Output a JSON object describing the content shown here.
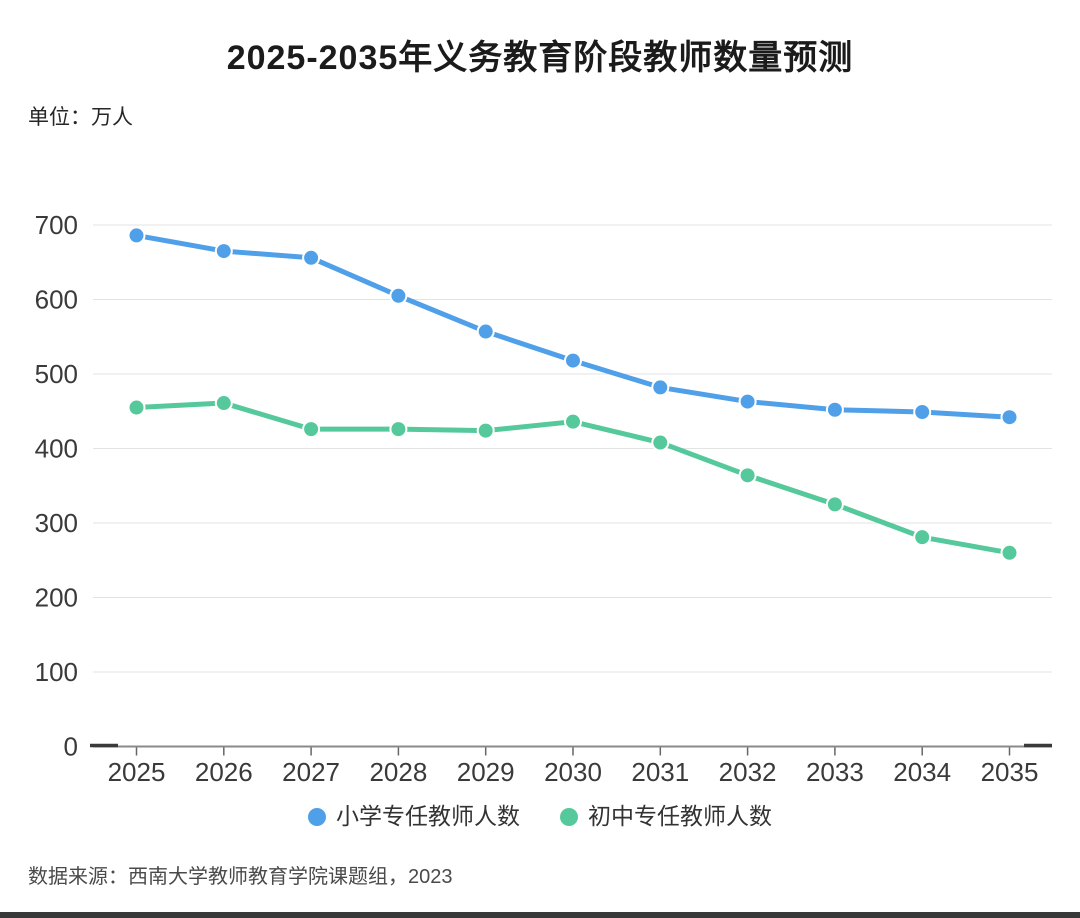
{
  "title": "2025-2035年义务教育阶段教师数量预测",
  "unit_label": "单位：万人",
  "source_note": "数据来源：西南大学教师教育学院课题组，2023",
  "colors": {
    "primary_series": "#4FA0E8",
    "secondary_series": "#55C99B",
    "grid_line": "#E3E3E3",
    "axis_line": "#8A8A8A",
    "axis_end_cap": "#3A3A3A",
    "tick_mark": "#666666",
    "axis_label": "#3A3A3A",
    "title_text": "#1B1B1B",
    "bottom_bar": "#383838"
  },
  "chart_data": {
    "type": "line",
    "title": "2025-2035年义务教育阶段教师数量预测",
    "unit": "万人",
    "xlabel": "",
    "ylabel": "万人",
    "categories": [
      "2025",
      "2026",
      "2027",
      "2028",
      "2029",
      "2030",
      "2031",
      "2032",
      "2033",
      "2034",
      "2035"
    ],
    "series": [
      {
        "name": "小学专任教师人数",
        "color": "#4FA0E8",
        "values": [
          686,
          665,
          656,
          605,
          557,
          518,
          482,
          463,
          452,
          449,
          442
        ]
      },
      {
        "name": "初中专任教师人数",
        "color": "#55C99B",
        "values": [
          455,
          461,
          426,
          426,
          424,
          436,
          408,
          364,
          325,
          281,
          260
        ]
      }
    ],
    "ylim": [
      0,
      700
    ],
    "ytick_interval": 100,
    "yticks": [
      0,
      100,
      200,
      300,
      400,
      500,
      600,
      700
    ],
    "grid": true,
    "legend_position": "bottom",
    "marker": "circle"
  }
}
